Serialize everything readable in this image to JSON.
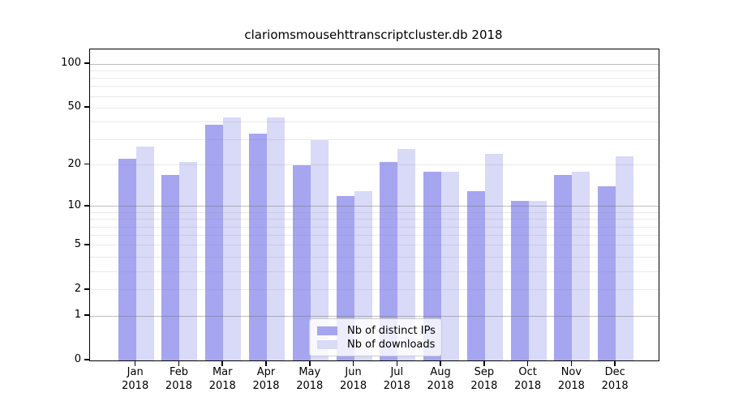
{
  "chart_data": {
    "type": "bar",
    "title": "clariomsmousehttranscriptcluster.db 2018",
    "categories": [
      "Jan",
      "Feb",
      "Mar",
      "Apr",
      "May",
      "Jun",
      "Jul",
      "Aug",
      "Sep",
      "Oct",
      "Nov",
      "Dec"
    ],
    "x_tick_second_line": "2018",
    "series": [
      {
        "name": "Nb of distinct IPs",
        "color": "#a5a5f0",
        "values": [
          22,
          17,
          38,
          33,
          20,
          12,
          21,
          18,
          13,
          11,
          17,
          14
        ]
      },
      {
        "name": "Nb of downloads",
        "color": "#d9d9f8",
        "values": [
          27,
          21,
          43,
          43,
          30,
          13,
          26,
          18,
          24,
          11,
          18,
          23
        ]
      }
    ],
    "yscale": "log1p",
    "y_tick_values": [
      0,
      1,
      2,
      5,
      10,
      20,
      50,
      100
    ],
    "ylim": [
      0,
      126
    ],
    "grid": true,
    "legend_position": "bottom-center",
    "colors": {
      "ips_bar": "#a5a5f0",
      "downloads_bar": "#d9d9f8",
      "spine": "#000000",
      "grid_major": "#b4b4b4",
      "grid_minor": "#e8e8e8"
    }
  }
}
